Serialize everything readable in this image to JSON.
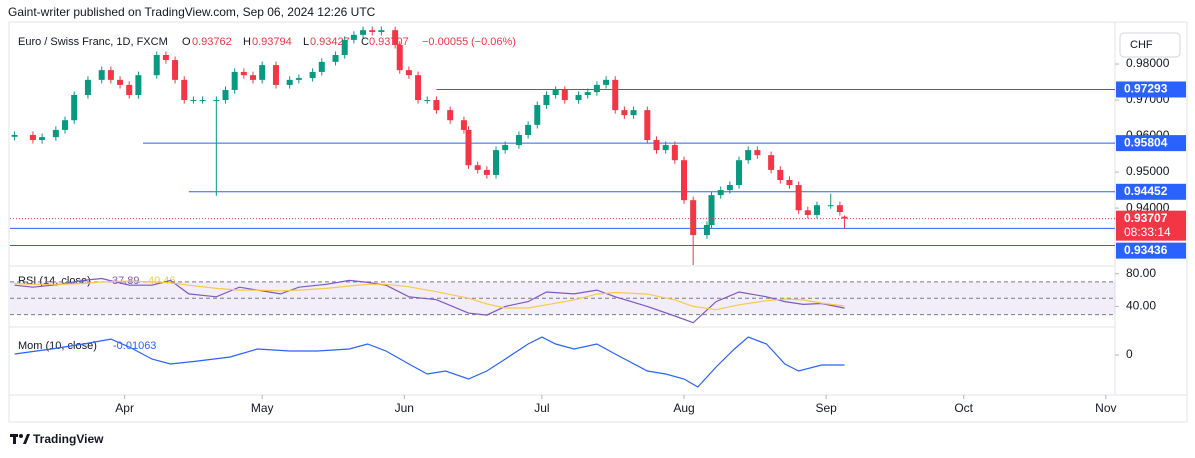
{
  "header": {
    "publisher": "Gaint-writer published on TradingView.com, Sep 06, 2024 12:26 UTC",
    "currency": "CHF"
  },
  "footer": {
    "brand": "TradingView"
  },
  "chart_data": [
    {
      "type": "candlestick",
      "title": "Euro / Swiss Franc, 1D, FXCM",
      "legend": {
        "o": "O",
        "h": "H",
        "l": "L",
        "c": "C",
        "change": {
          "value": -0.00055,
          "label": "−0.00055"
        },
        "change_pct": {
          "value": -0.06,
          "label": "(−0.06%)"
        }
      },
      "up_color": "#089981",
      "down_color": "#f23645",
      "x": [
        68,
        72,
        74,
        77,
        79,
        81,
        84,
        87,
        89,
        91,
        93,
        95,
        99,
        101,
        103,
        105,
        107,
        109,
        112,
        114,
        116,
        118,
        120,
        122,
        125,
        128,
        130,
        133,
        135,
        138,
        140,
        142,
        144,
        146,
        148,
        151,
        152,
        154,
        156,
        158,
        160,
        163,
        166,
        167,
        169,
        171,
        173,
        175,
        178,
        180,
        182,
        184,
        186,
        188,
        191,
        193,
        195,
        197,
        199,
        201,
        203,
        206,
        208,
        210,
        212,
        214,
        216,
        219,
        220,
        222,
        224,
        226,
        228,
        230,
        233,
        235,
        237,
        239,
        241,
        243,
        246,
        248,
        249
      ],
      "open": [
        0.9598,
        0.9603,
        0.9589,
        0.9597,
        0.9617,
        0.9644,
        0.9714,
        0.9756,
        0.9783,
        0.9756,
        0.9742,
        0.9714,
        0.9769,
        0.9825,
        0.9811,
        0.9756,
        0.97,
        0.97,
        0.97,
        0.97,
        0.9728,
        0.9778,
        0.9769,
        0.9756,
        0.9797,
        0.9742,
        0.9756,
        0.9761,
        0.9778,
        0.9806,
        0.9825,
        0.9867,
        0.9881,
        0.9894,
        0.9889,
        0.9894,
        0.9853,
        0.9783,
        0.9769,
        0.97,
        0.97,
        0.9672,
        0.9644,
        0.9617,
        0.9519,
        0.9506,
        0.9492,
        0.9561,
        0.9575,
        0.9603,
        0.9631,
        0.9686,
        0.9714,
        0.9728,
        0.97,
        0.9714,
        0.9722,
        0.9742,
        0.9756,
        0.9672,
        0.9658,
        0.9672,
        0.9589,
        0.9561,
        0.9575,
        0.9533,
        0.9422,
        0.9325,
        0.9353,
        0.9436,
        0.945,
        0.9464,
        0.9533,
        0.9561,
        0.9547,
        0.9506,
        0.9478,
        0.9464,
        0.9394,
        0.9381,
        0.9408,
        0.9408,
        0.93762
      ],
      "high": [
        0.9613,
        0.9613,
        0.9607,
        0.9627,
        0.9654,
        0.9724,
        0.9766,
        0.9793,
        0.9793,
        0.9766,
        0.9752,
        0.9779,
        0.9835,
        0.9835,
        0.9821,
        0.9766,
        0.971,
        0.971,
        0.971,
        0.9738,
        0.9788,
        0.9788,
        0.9779,
        0.9807,
        0.9807,
        0.9766,
        0.9771,
        0.9788,
        0.9816,
        0.9835,
        0.9877,
        0.9891,
        0.9904,
        0.9904,
        0.9904,
        0.9904,
        0.9863,
        0.9793,
        0.9779,
        0.971,
        0.971,
        0.9682,
        0.9654,
        0.9627,
        0.9529,
        0.9516,
        0.9571,
        0.9585,
        0.9613,
        0.9641,
        0.9696,
        0.9724,
        0.9738,
        0.9738,
        0.9724,
        0.9732,
        0.9752,
        0.9766,
        0.9766,
        0.9682,
        0.9682,
        0.9682,
        0.9599,
        0.9585,
        0.9585,
        0.9543,
        0.9432,
        0.9363,
        0.9446,
        0.946,
        0.9474,
        0.9543,
        0.9571,
        0.9571,
        0.9557,
        0.9516,
        0.9488,
        0.9474,
        0.9404,
        0.9418,
        0.944,
        0.9418,
        0.93794
      ],
      "low": [
        0.9588,
        0.9579,
        0.9579,
        0.9587,
        0.9607,
        0.9634,
        0.9704,
        0.9746,
        0.9746,
        0.9732,
        0.9704,
        0.9704,
        0.9759,
        0.9801,
        0.9746,
        0.969,
        0.969,
        0.969,
        0.9434,
        0.969,
        0.9718,
        0.9759,
        0.9746,
        0.9746,
        0.9732,
        0.9732,
        0.9746,
        0.9751,
        0.9768,
        0.9796,
        0.9815,
        0.9857,
        0.9871,
        0.9879,
        0.9879,
        0.9843,
        0.9773,
        0.9759,
        0.969,
        0.969,
        0.9662,
        0.9634,
        0.9607,
        0.9509,
        0.9496,
        0.9482,
        0.9482,
        0.9551,
        0.9565,
        0.9593,
        0.9621,
        0.9676,
        0.9704,
        0.969,
        0.969,
        0.9704,
        0.9712,
        0.9732,
        0.9662,
        0.9648,
        0.9648,
        0.9579,
        0.9551,
        0.9551,
        0.9523,
        0.9412,
        0.9242,
        0.9315,
        0.9343,
        0.9426,
        0.944,
        0.9454,
        0.9523,
        0.9537,
        0.9496,
        0.9468,
        0.9454,
        0.9384,
        0.9371,
        0.9371,
        0.9398,
        0.9379,
        0.93427
      ],
      "close": [
        0.9603,
        0.9589,
        0.9597,
        0.9617,
        0.9644,
        0.9714,
        0.9756,
        0.9783,
        0.9756,
        0.9742,
        0.9714,
        0.9769,
        0.9825,
        0.9811,
        0.9756,
        0.97,
        0.97,
        0.97,
        0.97,
        0.9728,
        0.9778,
        0.9769,
        0.9756,
        0.9797,
        0.9742,
        0.9756,
        0.9761,
        0.9778,
        0.9806,
        0.9825,
        0.9867,
        0.9881,
        0.9894,
        0.9889,
        0.9894,
        0.9853,
        0.9783,
        0.9769,
        0.97,
        0.97,
        0.9672,
        0.9644,
        0.9617,
        0.9519,
        0.9506,
        0.9492,
        0.9561,
        0.9575,
        0.9603,
        0.9631,
        0.9686,
        0.9714,
        0.9728,
        0.97,
        0.9714,
        0.9722,
        0.9742,
        0.9756,
        0.9672,
        0.9658,
        0.9672,
        0.9589,
        0.9561,
        0.9575,
        0.9533,
        0.9422,
        0.9325,
        0.9353,
        0.9436,
        0.945,
        0.9464,
        0.9533,
        0.9561,
        0.9547,
        0.9506,
        0.9478,
        0.9464,
        0.9394,
        0.9381,
        0.9408,
        0.9408,
        0.9389,
        0.93707
      ],
      "countdown": "08:33:14",
      "levels": [
        {
          "value": 0.97293,
          "x_start": 160,
          "show_label": true
        },
        {
          "value": 0.95804,
          "x_start": 96,
          "show_label": true
        },
        {
          "value": 0.94452,
          "x_start": 106,
          "show_label": true
        },
        {
          "value": 0.93436,
          "x_start": 67,
          "show_label": true
        },
        {
          "value": 0.9296,
          "x_start": 67,
          "show_label": false
        }
      ],
      "level_color": "#2962ff",
      "xlim": [
        67,
        308
      ],
      "xticks": [
        {
          "value": 92,
          "label": "Apr"
        },
        {
          "value": 122,
          "label": "May"
        },
        {
          "value": 153,
          "label": "Jun"
        },
        {
          "value": 183,
          "label": "Jul"
        },
        {
          "value": 214,
          "label": "Aug"
        },
        {
          "value": 245,
          "label": "Sep"
        },
        {
          "value": 275,
          "label": "Oct"
        },
        {
          "value": 306,
          "label": "Nov"
        }
      ],
      "ylim": [
        0.9242,
        0.99
      ],
      "yticks": [
        {
          "value": 0.98,
          "label": "0.98000"
        },
        {
          "value": 0.97,
          "label": "0.97000"
        },
        {
          "value": 0.96,
          "label": "0.96000"
        },
        {
          "value": 0.95,
          "label": "0.95000"
        },
        {
          "value": 0.94,
          "label": "0.94000"
        }
      ]
    },
    {
      "type": "line",
      "title": "RSI (14, close)",
      "x": [
        68,
        72,
        78,
        83,
        87,
        93,
        98,
        102,
        106,
        112,
        117,
        121,
        126,
        130,
        136,
        141,
        145,
        149,
        154,
        160,
        167,
        171,
        175,
        180,
        184,
        190,
        195,
        199,
        206,
        212,
        216,
        221,
        226,
        232,
        236,
        240,
        244,
        249
      ],
      "series": [
        {
          "color": "#7e57c2",
          "values": [
            65.9,
            63.5,
            67.1,
            71.8,
            74.1,
            65.9,
            65.9,
            71.8,
            55.3,
            51.8,
            63.5,
            60,
            55.3,
            63.5,
            67.1,
            71.8,
            69.4,
            65.9,
            51.8,
            48.2,
            31.8,
            29.4,
            40,
            45.9,
            57.6,
            55.3,
            60,
            51.8,
            40,
            28.2,
            20,
            45.9,
            57.6,
            51.8,
            45.9,
            42.4,
            43.5,
            37.89
          ]
        },
        {
          "color": "#f7c948",
          "values": [
            68,
            67,
            67,
            68,
            70,
            71,
            70,
            69,
            66,
            62,
            60,
            60,
            59,
            60,
            62,
            65,
            67,
            67,
            64,
            58,
            50,
            43,
            38,
            38,
            42,
            48,
            55,
            57,
            55,
            48,
            40,
            36,
            42,
            47,
            49,
            48,
            44,
            40.46
          ]
        }
      ],
      "band": [
        30,
        70
      ],
      "guides": [
        70,
        50,
        30
      ],
      "ylim": [
        16,
        87
      ],
      "yticks": [
        {
          "value": 80,
          "label": "80.00"
        },
        {
          "value": 40,
          "label": "40.00"
        }
      ]
    },
    {
      "type": "line",
      "title": "Mom (10, close)",
      "x": [
        68,
        76,
        83,
        89,
        93,
        98,
        102,
        108,
        115,
        121,
        128,
        134,
        141,
        145,
        149,
        154,
        158,
        162,
        167,
        171,
        175,
        180,
        183,
        186,
        190,
        195,
        199,
        206,
        210,
        214,
        217,
        221,
        225,
        228,
        232,
        236,
        239,
        244,
        249
      ],
      "series": [
        {
          "color": "#2962ff",
          "values": [
            0.0011,
            0.0064,
            0.0117,
            0.017,
            0.0085,
            -0.0043,
            -0.0096,
            -0.0064,
            -0.0021,
            0.0064,
            0.0043,
            0.0043,
            0.0064,
            0.0117,
            0.0043,
            -0.0096,
            -0.0202,
            -0.017,
            -0.0255,
            -0.017,
            -0.0043,
            0.0117,
            0.0191,
            0.0117,
            0.0064,
            0.0117,
            0.0011,
            -0.017,
            -0.0202,
            -0.0255,
            -0.034,
            -0.0128,
            0.0064,
            0.0191,
            0.0117,
            -0.0096,
            -0.017,
            -0.0106,
            -0.01063
          ]
        }
      ],
      "ylim": [
        -0.0415,
        0.0277
      ],
      "yticks": [
        0
      ]
    }
  ]
}
